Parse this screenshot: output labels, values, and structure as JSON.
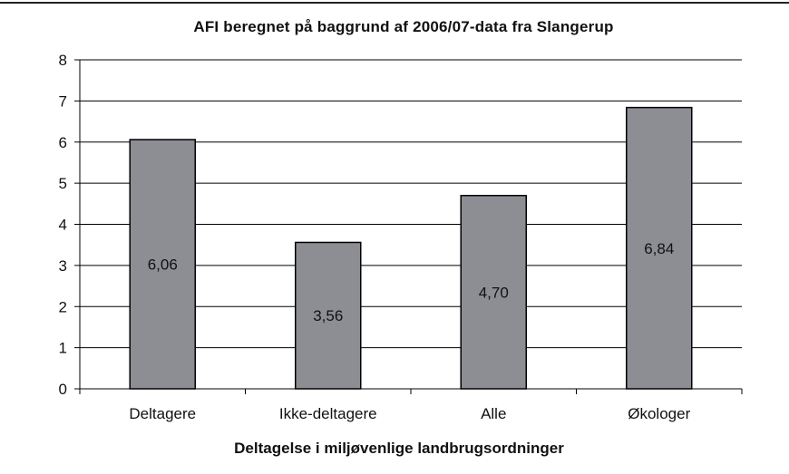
{
  "chart_data": {
    "type": "bar",
    "title": "AFI beregnet på baggrund af 2006/07-data fra Slangerup",
    "xlabel": "Deltagelse i miljøvenlige landbrugsordninger",
    "ylabel": "",
    "categories": [
      "Deltagere",
      "Ikke-deltagere",
      "Alle",
      "Økologer"
    ],
    "values": [
      6.06,
      3.56,
      4.7,
      6.84
    ],
    "data_labels": [
      "6,06",
      "3,56",
      "4,70",
      "6,84"
    ],
    "ylim": [
      0,
      8
    ],
    "yticks": [
      "0",
      "1",
      "2",
      "3",
      "4",
      "5",
      "6",
      "7",
      "8"
    ],
    "grid": true,
    "bar_color": "#8c8e93",
    "bar_edge_color": "#000000",
    "legend": "none"
  }
}
